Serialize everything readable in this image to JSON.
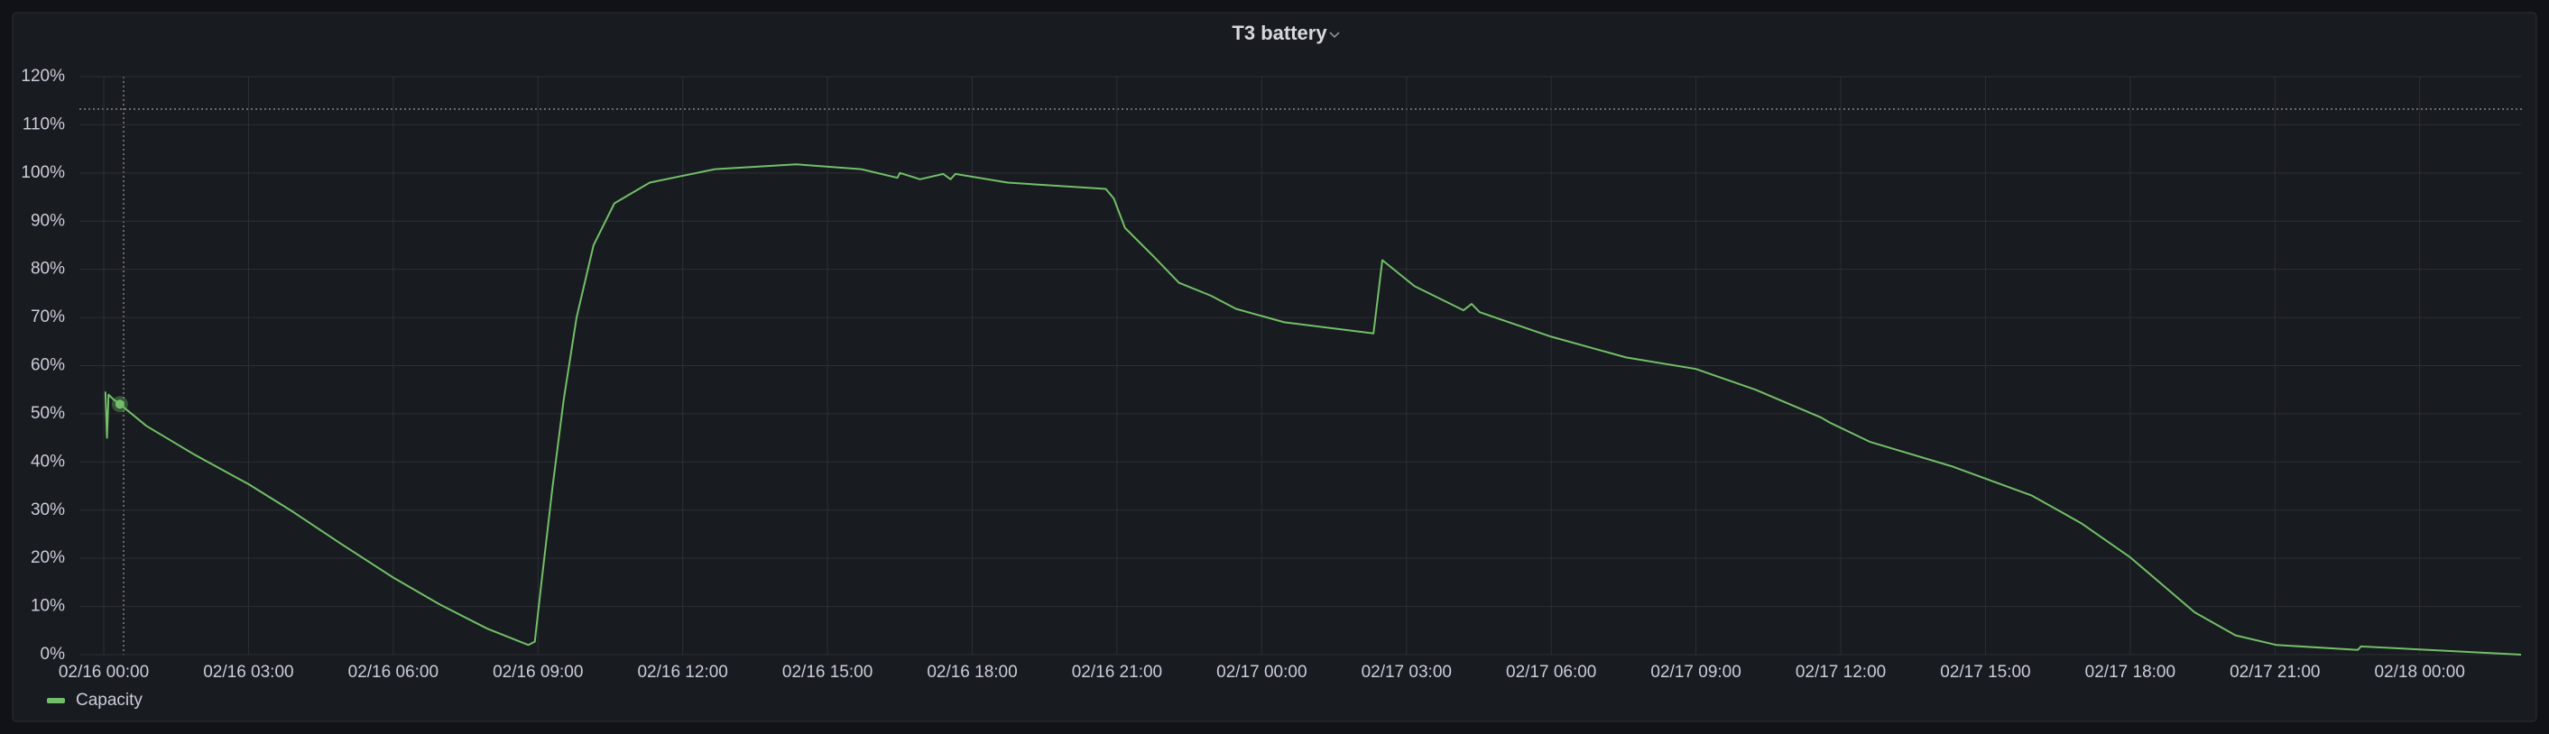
{
  "chart_data": {
    "type": "line",
    "title": "T3 battery",
    "x": [
      "02/16 00:02",
      "02/16 00:04",
      "02/16 00:06",
      "02/16 00:12",
      "02/16 00:20",
      "02/16 00:53",
      "02/16 01:53",
      "02/16 03:00",
      "02/16 03:55",
      "02/16 04:55",
      "02/16 06:00",
      "02/16 06:57",
      "02/16 07:57",
      "02/16 08:48",
      "02/16 08:56",
      "02/16 09:04",
      "02/16 09:18",
      "02/16 09:32",
      "02/16 09:48",
      "02/16 10:09",
      "02/16 10:35",
      "02/16 11:19",
      "02/16 12:40",
      "02/16 14:21",
      "02/16 15:42",
      "02/16 16:27",
      "02/16 16:30",
      "02/16 16:55",
      "02/16 17:24",
      "02/16 17:33",
      "02/16 17:39",
      "02/16 18:44",
      "02/16 20:46",
      "02/16 20:56",
      "02/16 21:10",
      "02/16 21:46",
      "02/16 22:17",
      "02/16 22:57",
      "02/16 23:28",
      "02/17 00:28",
      "02/17 02:19",
      "02/17 02:30",
      "02/17 03:10",
      "02/17 04:11",
      "02/17 04:21",
      "02/17 04:31",
      "02/17 06:00",
      "02/17 07:33",
      "02/17 09:00",
      "02/17 10:14",
      "02/17 11:36",
      "02/17 11:46",
      "02/17 12:36",
      "02/17 14:18",
      "02/17 15:58",
      "02/17 16:59",
      "02/17 18:00",
      "02/17 18:40",
      "02/17 19:20",
      "02/17 20:11",
      "02/17 21:02",
      "02/17 22:43",
      "02/17 22:47",
      "02/18 02:06"
    ],
    "series": [
      {
        "name": "Capacity",
        "color": "#73bf69",
        "values": [
          54.6,
          45,
          54,
          53,
          52,
          47.5,
          41.5,
          35.4,
          29.7,
          23,
          16,
          10.5,
          5.4,
          2,
          2.7,
          14.5,
          34.7,
          53,
          70,
          85,
          93.7,
          98,
          100.8,
          101.8,
          100.8,
          99,
          100,
          98.7,
          99.8,
          98.7,
          99.8,
          98,
          96.7,
          94.7,
          88.6,
          82.6,
          77.2,
          74.5,
          71.8,
          69,
          66.7,
          81.9,
          76.5,
          71.5,
          72.8,
          71.1,
          66,
          61.7,
          59.3,
          55,
          49.2,
          48.2,
          44.2,
          39.1,
          33,
          27.3,
          20.2,
          14.5,
          8.8,
          4,
          2,
          1,
          1.7,
          0
        ]
      }
    ],
    "xlim": [
      "02/16 00:00",
      "02/18 02:06"
    ],
    "xticks": [
      "02/16 00:00",
      "02/16 03:00",
      "02/16 06:00",
      "02/16 09:00",
      "02/16 12:00",
      "02/16 15:00",
      "02/16 18:00",
      "02/16 21:00",
      "02/17 00:00",
      "02/17 03:00",
      "02/17 06:00",
      "02/17 09:00",
      "02/17 12:00",
      "02/17 15:00",
      "02/17 18:00",
      "02/17 21:00",
      "02/18 00:00"
    ],
    "ylim": [
      0,
      120
    ],
    "yticks": [
      {
        "value": 0,
        "label": "0%"
      },
      {
        "value": 10,
        "label": "10%"
      },
      {
        "value": 20,
        "label": "20%"
      },
      {
        "value": 30,
        "label": "30%"
      },
      {
        "value": 40,
        "label": "40%"
      },
      {
        "value": 50,
        "label": "50%"
      },
      {
        "value": 60,
        "label": "60%"
      },
      {
        "value": 70,
        "label": "70%"
      },
      {
        "value": 80,
        "label": "80%"
      },
      {
        "value": 90,
        "label": "90%"
      },
      {
        "value": 100,
        "label": "100%"
      },
      {
        "value": 110,
        "label": "110%"
      },
      {
        "value": 120,
        "label": "120%"
      }
    ],
    "grid": true,
    "legend": "bottom-left"
  }
}
